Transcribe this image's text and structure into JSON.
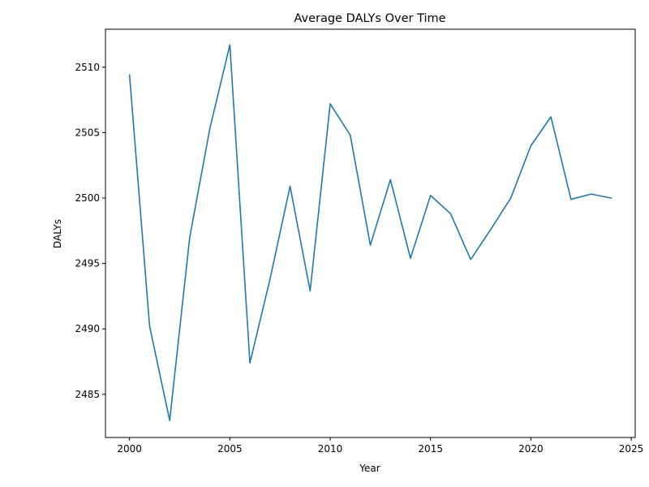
{
  "chart_data": {
    "type": "line",
    "title": "Average DALYs Over Time",
    "xlabel": "Year",
    "ylabel": "DALYs",
    "xlim": [
      1998.8,
      2025.2
    ],
    "ylim": [
      2481.7,
      2512.9
    ],
    "xticks": [
      2000,
      2005,
      2010,
      2015,
      2020,
      2025
    ],
    "yticks": [
      2485,
      2490,
      2495,
      2500,
      2505,
      2510
    ],
    "grid": false,
    "legend": "none",
    "series": [
      {
        "color": "#1f77b4",
        "x": [
          2000,
          2001,
          2002,
          2003,
          2004,
          2005,
          2006,
          2007,
          2008,
          2009,
          2010,
          2011,
          2012,
          2013,
          2014,
          2015,
          2016,
          2017,
          2018,
          2019,
          2020,
          2021,
          2022,
          2023,
          2024
        ],
        "y": [
          2509.4,
          2490.2,
          2483.0,
          2497.0,
          2505.3,
          2511.7,
          2487.4,
          2493.8,
          2500.9,
          2492.9,
          2507.2,
          2504.8,
          2496.4,
          2501.4,
          2495.4,
          2500.2,
          2498.8,
          2495.3,
          2497.6,
          2500.0,
          2504.0,
          2506.2,
          2499.9,
          2500.3,
          2500.0
        ]
      }
    ]
  }
}
